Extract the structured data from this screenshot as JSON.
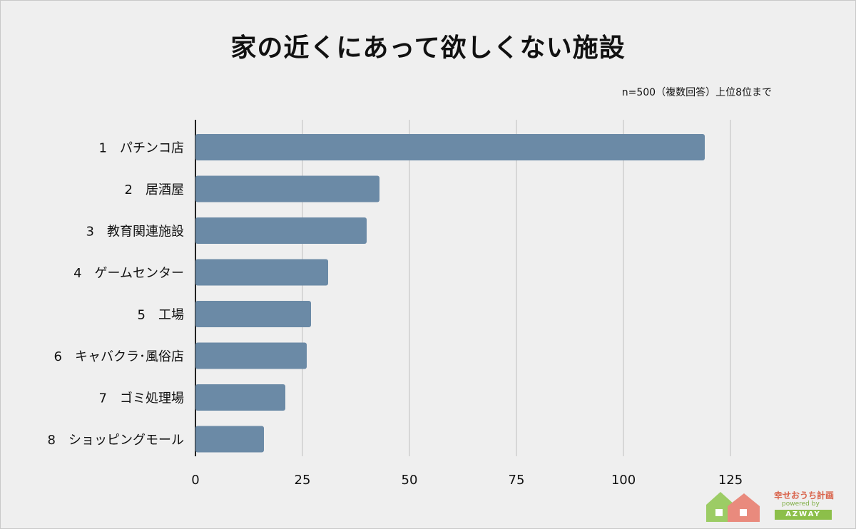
{
  "title": "家の近くにあって欲しくない施設",
  "subtitle": "n=500（複数回答）上位8位まで",
  "colors": {
    "bar": "#6b8aa6",
    "background": "#efefef",
    "grid": "#cfcfcf"
  },
  "logo": {
    "name": "幸せおうち計画",
    "powered_by": "powered by",
    "company": "AZWAY"
  },
  "chart_data": {
    "type": "bar",
    "orientation": "horizontal",
    "title": "家の近くにあって欲しくない施設",
    "subtitle": "n=500（複数回答）上位8位まで",
    "categories": [
      "1　パチンコ店",
      "2　居酒屋",
      "3　教育関連施設",
      "4　ゲームセンター",
      "5　工場",
      "6　キャバクラ･風俗店",
      "7　ゴミ処理場",
      "8　ショッピングモール"
    ],
    "values": [
      119,
      43,
      40,
      31,
      27,
      26,
      21,
      16
    ],
    "xlim": [
      0,
      125
    ],
    "xticks": [
      "0",
      "25",
      "50",
      "75",
      "100",
      "125"
    ],
    "grid": true,
    "legend": "none"
  }
}
